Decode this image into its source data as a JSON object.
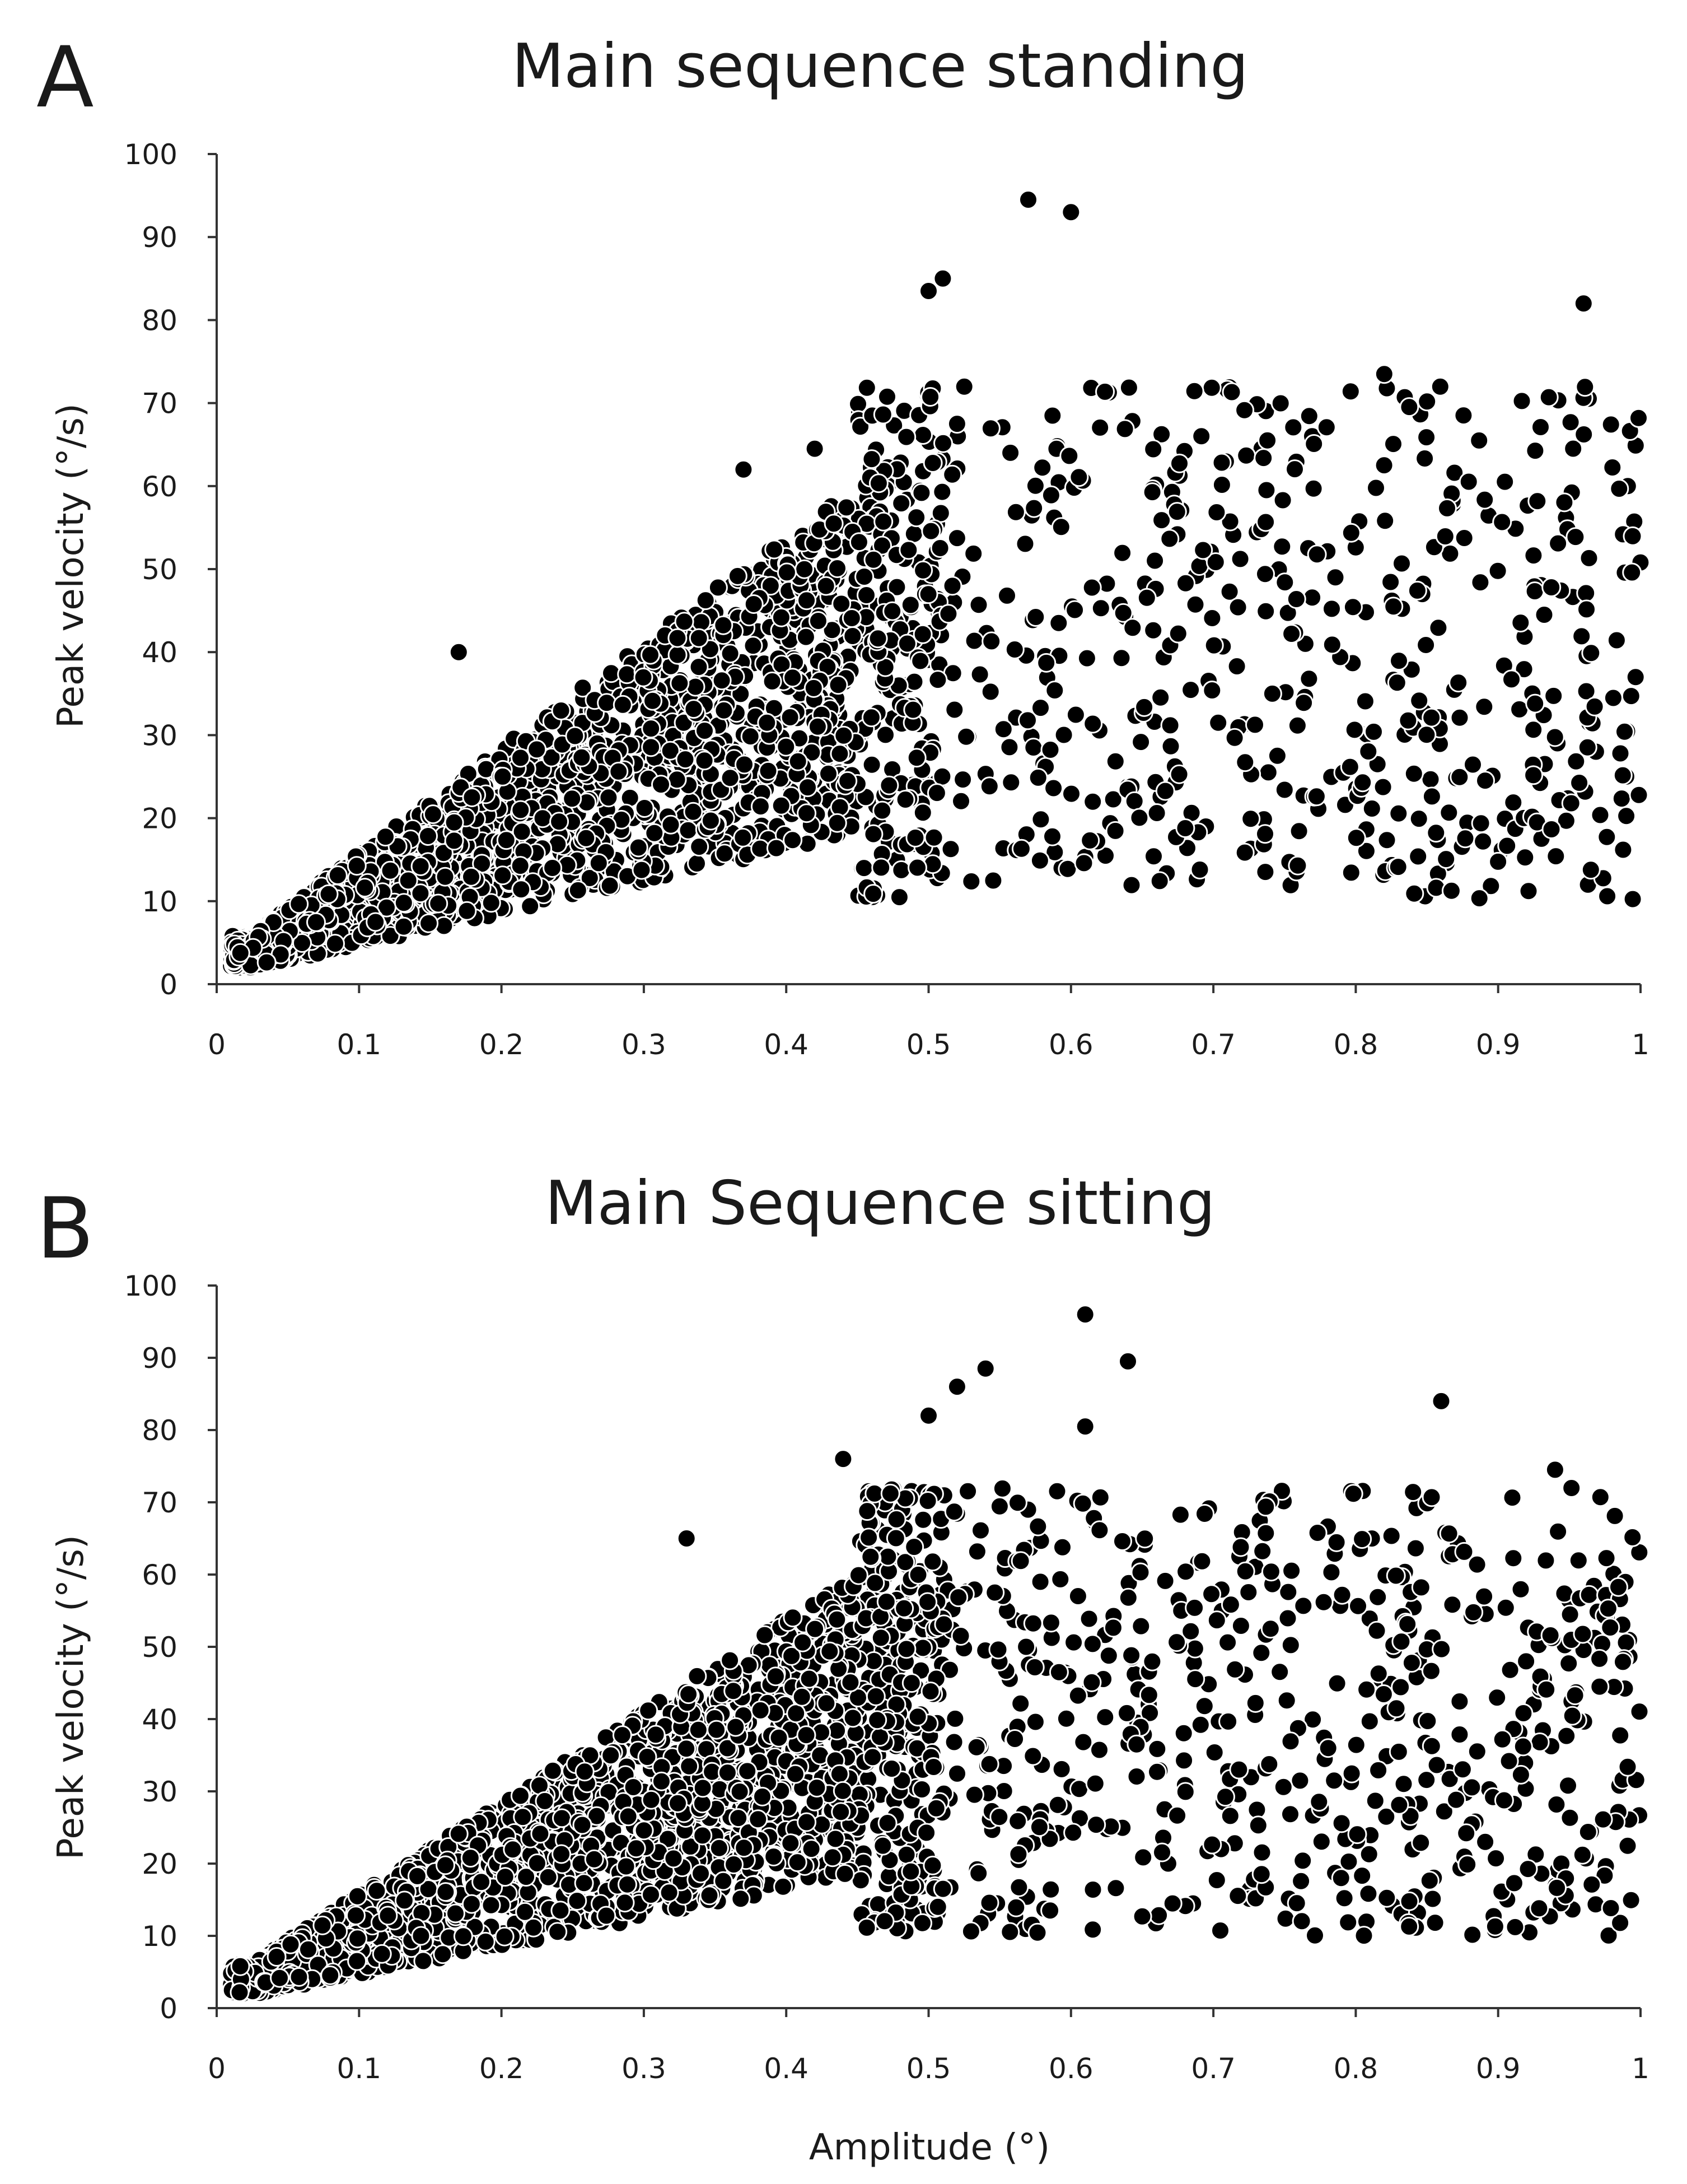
{
  "chart_data": [
    {
      "panel": "A",
      "type": "scatter",
      "title": "Main sequence  standing",
      "xlabel": "",
      "ylabel": "Peak velocity (°/s)",
      "xlim": [
        0,
        1
      ],
      "ylim": [
        0,
        100
      ],
      "xticks": [
        "0",
        "0.1",
        "0.2",
        "0.3",
        "0.4",
        "0.5",
        "0.6",
        "0.7",
        "0.8",
        "0.9",
        "1"
      ],
      "yticks": [
        "0",
        "10",
        "20",
        "30",
        "40",
        "50",
        "60",
        "70",
        "80",
        "90",
        "100"
      ],
      "grid": false,
      "marker_color": "#000000",
      "n_points": 2600,
      "distribution": "dense cluster following peak velocity ≈ 85×amplitude (spread ±40%) near the origin, widening with amplitude; sparse scatter from 10 to 75 °/s above amplitude 0.5",
      "outliers": [
        [
          0.57,
          94.5
        ],
        [
          0.6,
          93
        ],
        [
          0.5,
          83.5
        ],
        [
          0.51,
          85
        ],
        [
          0.96,
          82
        ],
        [
          0.82,
          73.5
        ],
        [
          0.52,
          67.5
        ],
        [
          0.42,
          64.5
        ],
        [
          0.37,
          62
        ],
        [
          0.17,
          40
        ]
      ]
    },
    {
      "panel": "B",
      "type": "scatter",
      "title": "Main Sequence  sitting",
      "xlabel": "Amplitude (°)",
      "ylabel": "Peak velocity (°/s)",
      "xlim": [
        0,
        1
      ],
      "ylim": [
        0,
        100
      ],
      "xticks": [
        "0",
        "0.1",
        "0.2",
        "0.3",
        "0.4",
        "0.5",
        "0.6",
        "0.7",
        "0.8",
        "0.9",
        "1"
      ],
      "yticks": [
        "0",
        "10",
        "20",
        "30",
        "40",
        "50",
        "60",
        "70",
        "80",
        "90",
        "100"
      ],
      "grid": false,
      "marker_color": "#000000",
      "n_points": 3000,
      "distribution": "dense cluster following peak velocity ≈ 85×amplitude (spread ±40%), widening with amplitude; sparse scatter from 10 to 75 °/s above amplitude 0.5",
      "outliers": [
        [
          0.61,
          96
        ],
        [
          0.64,
          89.5
        ],
        [
          0.86,
          84
        ],
        [
          0.54,
          88.5
        ],
        [
          0.52,
          86
        ],
        [
          0.5,
          82
        ],
        [
          0.61,
          80.5
        ],
        [
          0.44,
          76
        ],
        [
          0.33,
          65
        ],
        [
          0.94,
          74.5
        ]
      ]
    }
  ]
}
